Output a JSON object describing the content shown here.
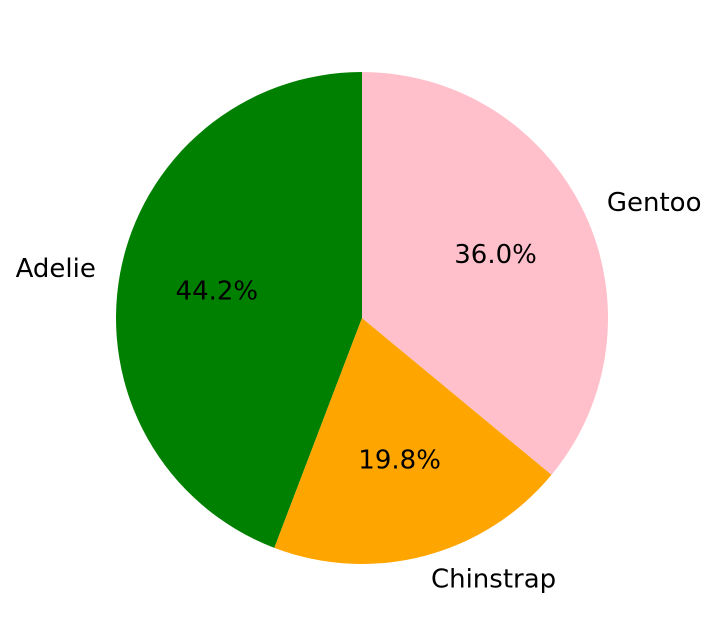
{
  "chart_data": {
    "type": "pie",
    "title": "",
    "start_angle_deg": 90,
    "direction": "counterclockwise",
    "slices": [
      {
        "label": "Adelie",
        "value": 44.2,
        "pct_text": "44.2%",
        "color": "#008000"
      },
      {
        "label": "Chinstrap",
        "value": 19.8,
        "pct_text": "19.8%",
        "color": "#FFA500"
      },
      {
        "label": "Gentoo",
        "value": 36.0,
        "pct_text": "36.0%",
        "color": "#FFC0CB"
      }
    ]
  }
}
